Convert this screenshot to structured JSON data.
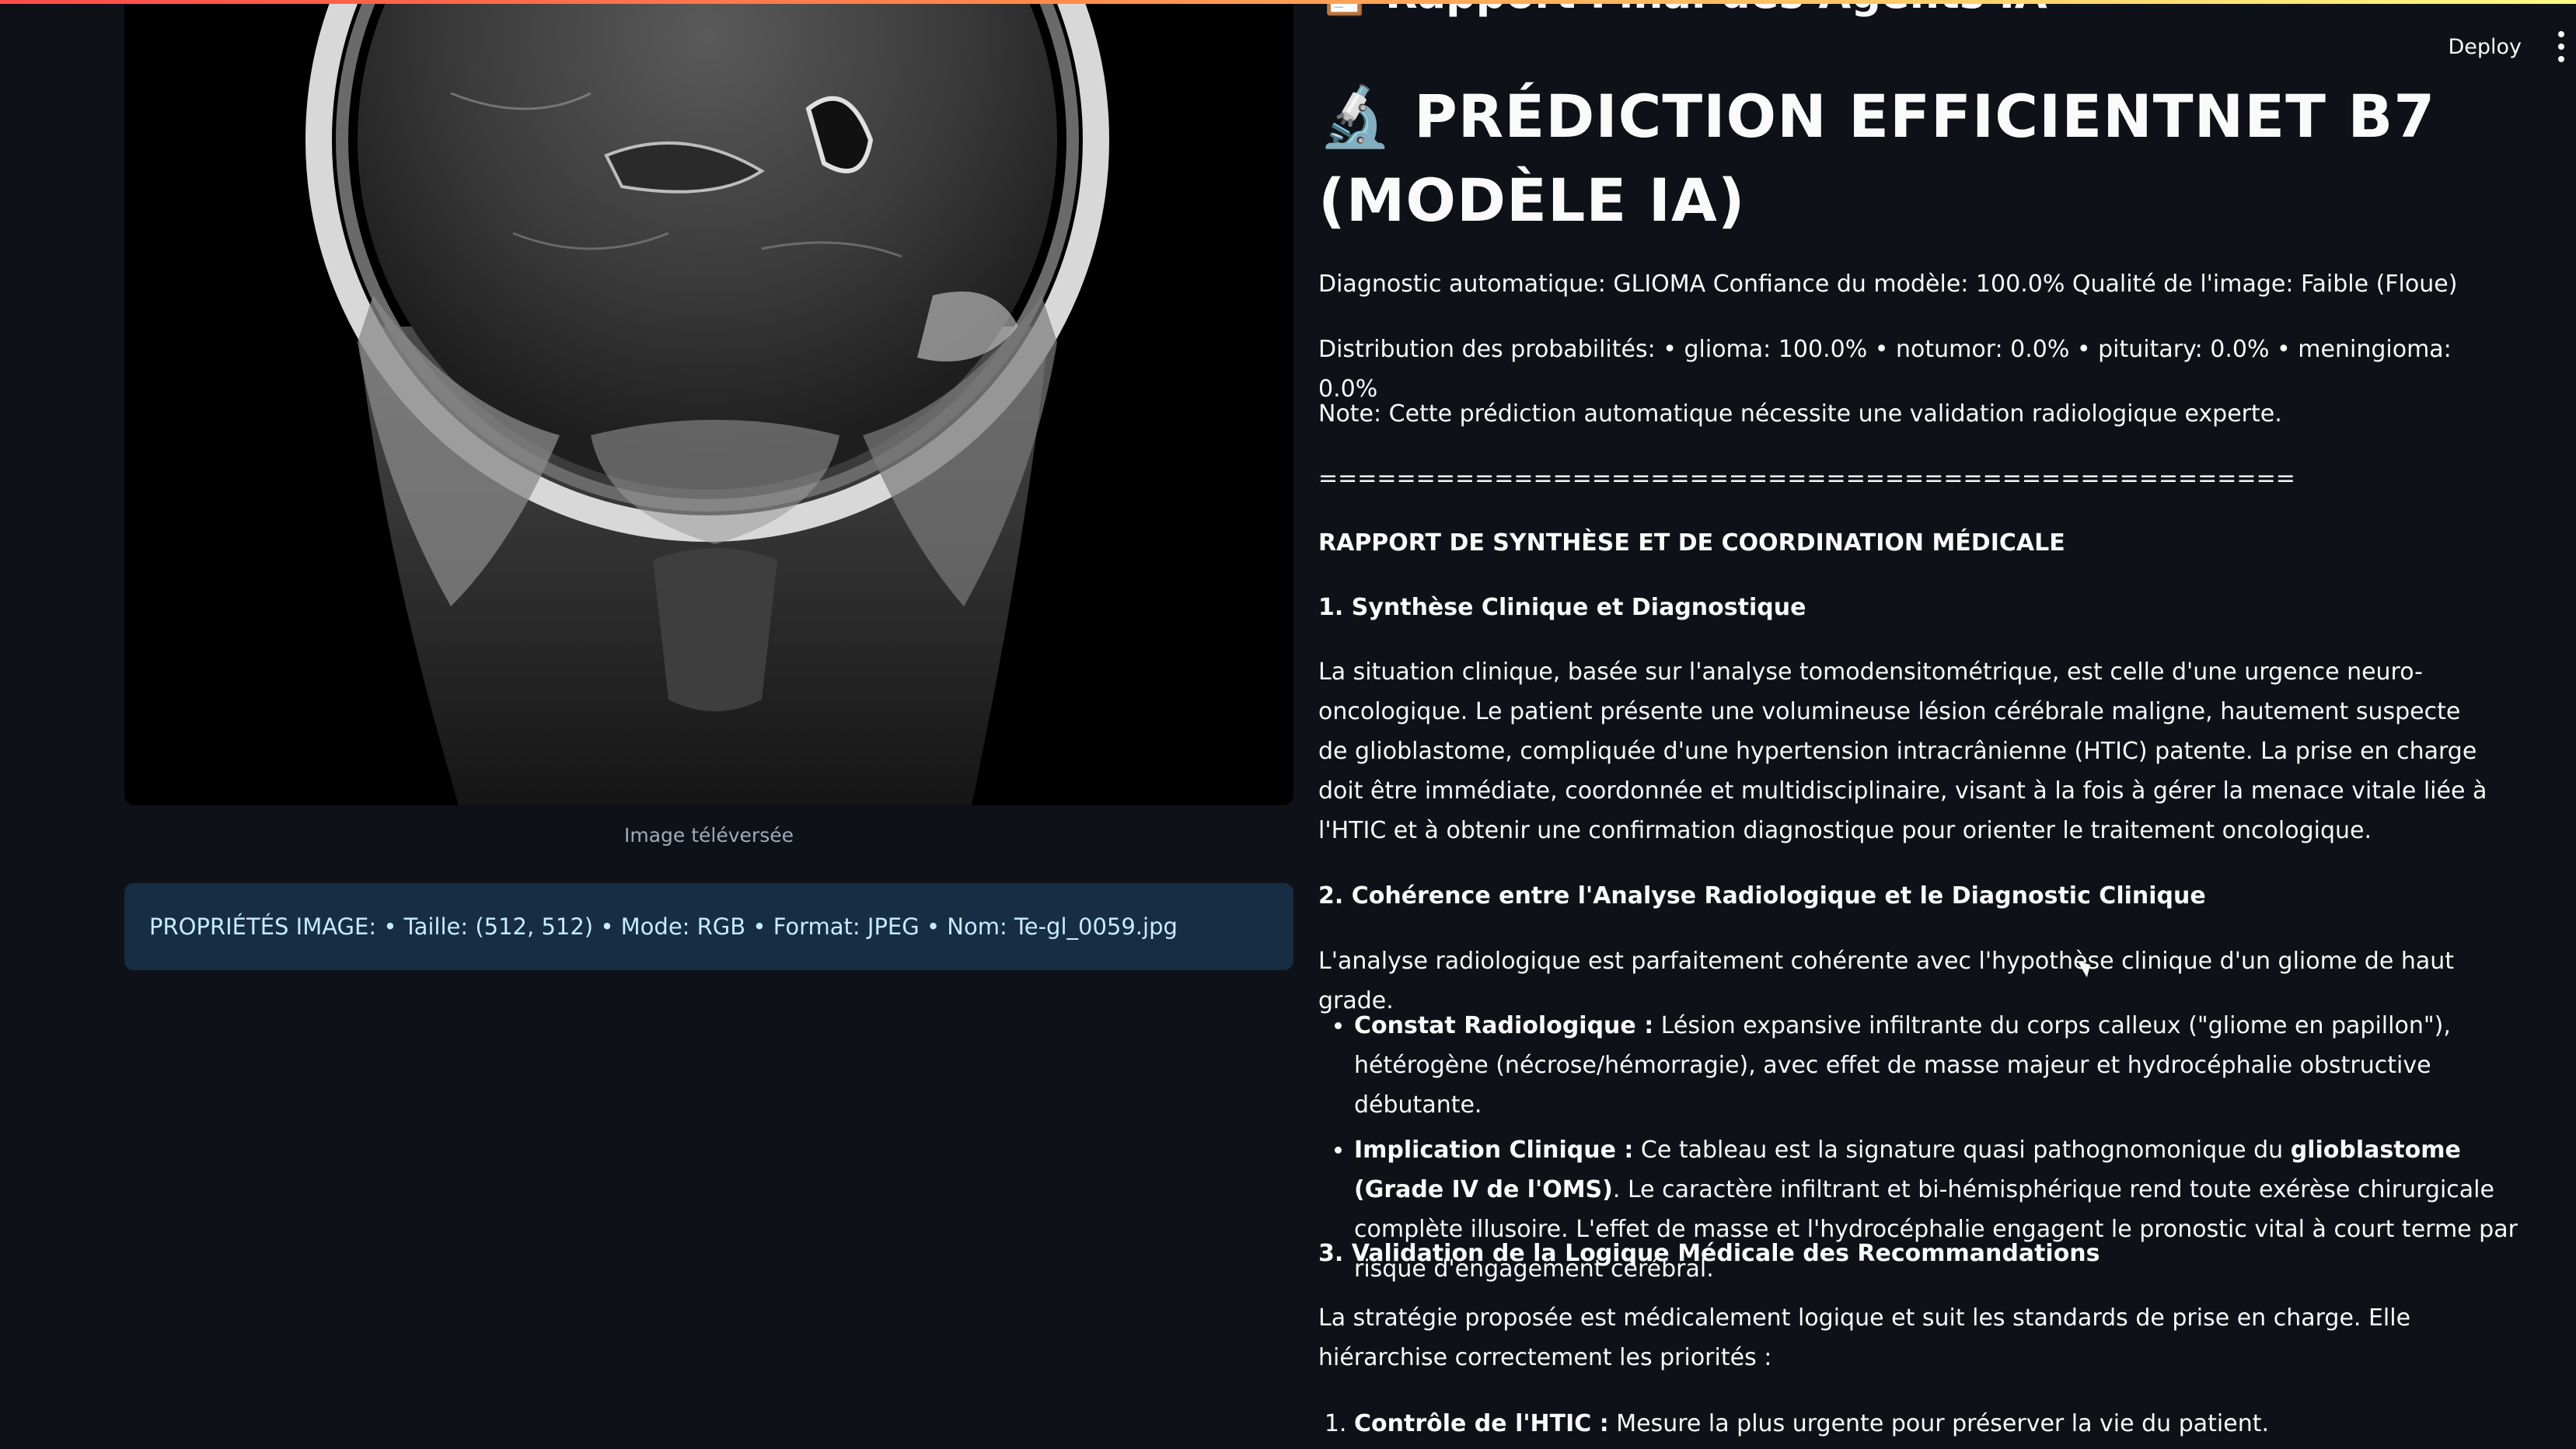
{
  "header": {
    "partial_title": "Rapport Final des Agents IA",
    "deploy_label": "Deploy"
  },
  "left": {
    "caption": "Image téléversée",
    "properties": "PROPRIÉTÉS IMAGE: • Taille: (512, 512) • Mode: RGB • Format: JPEG • Nom: Te-gl_0059.jpg"
  },
  "prediction": {
    "heading": "PRÉDICTION EFFICIENTNET B7 (MODÈLE IA)",
    "diagnostic_line": "Diagnostic automatique: GLIOMA Confiance du modèle: 100.0% Qualité de l'image: Faible (Floue)",
    "distribution_line": "Distribution des probabilités: • glioma: 100.0% • notumor: 0.0% • pituitary: 0.0% • meningioma: 0.0%",
    "note_line": "Note: Cette prédiction automatique nécessite une validation radiologique experte.",
    "separator": "=================================================="
  },
  "report": {
    "title": "RAPPORT DE SYNTHÈSE ET DE COORDINATION MÉDICALE",
    "s1_title": "1. Synthèse Clinique et Diagnostique",
    "s1_body": "La situation clinique, basée sur l'analyse tomodensitométrique, est celle d'une urgence neuro-oncologique. Le patient présente une volumineuse lésion cérébrale maligne, hautement suspecte de glioblastome, compliquée d'une hypertension intracrânienne (HTIC) patente. La prise en charge doit être immédiate, coordonnée et multidisciplinaire, visant à la fois à gérer la menace vitale liée à l'HTIC et à obtenir une confirmation diagnostique pour orienter le traitement oncologique.",
    "s2_title": "2. Cohérence entre l'Analyse Radiologique et le Diagnostic Clinique",
    "s2_body": "L'analyse radiologique est parfaitement cohérente avec l'hypothèse clinique d'un gliome de haut grade.",
    "s2_b1_label": "Constat Radiologique :",
    "s2_b1_text": " Lésion expansive infiltrante du corps calleux (\"gliome en papillon\"), hétérogène (nécrose/hémorragie), avec effet de masse majeur et hydrocéphalie obstructive débutante.",
    "s2_b2_label": "Implication Clinique :",
    "s2_b2_text_a": " Ce tableau est la signature quasi pathognomonique du ",
    "s2_b2_bold": "glioblastome (Grade IV de l'OMS)",
    "s2_b2_text_b": ". Le caractère infiltrant et bi-hémisphérique rend toute exérèse chirurgicale complète illusoire. L'effet de masse et l'hydrocéphalie engagent le pronostic vital à court terme par risque d'engagement cérébral.",
    "s3_title": "3. Validation de la Logique Médicale des Recommandations",
    "s3_body": "La stratégie proposée est médicalement logique et suit les standards de prise en charge. Elle hiérarchise correctement les priorités :",
    "s3_i1_label": "Contrôle de l'HTIC :",
    "s3_i1_text": " Mesure la plus urgente pour préserver la vie du patient."
  }
}
